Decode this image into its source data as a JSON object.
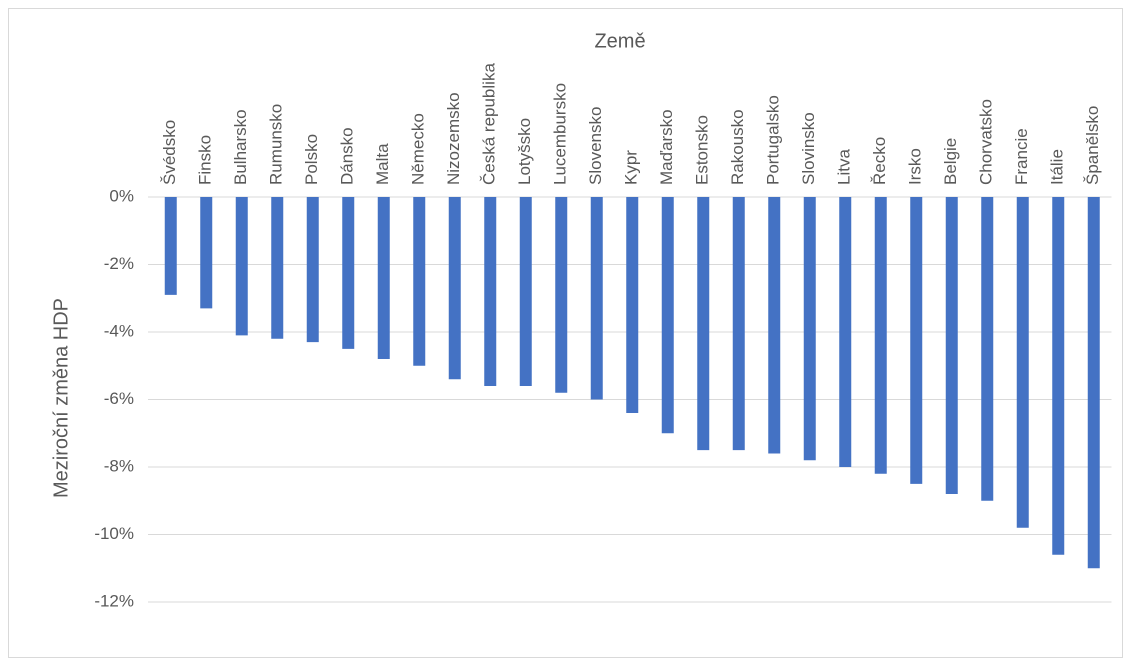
{
  "chart_data": {
    "type": "bar",
    "title": "Země",
    "y_label": "Meziroční změna HDP",
    "categories": [
      "Švédsko",
      "Finsko",
      "Bulharsko",
      "Rumunsko",
      "Polsko",
      "Dánsko",
      "Malta",
      "Německo",
      "Nizozemsko",
      "Česká republika",
      "Lotyšsko",
      "Lucembursko",
      "Slovensko",
      "Kypr",
      "Maďarsko",
      "Estonsko",
      "Rakousko",
      "Portugalsko",
      "Slovinsko",
      "Litva",
      "Řecko",
      "Irsko",
      "Belgie",
      "Chorvatsko",
      "Francie",
      "Itálie",
      "Španělsko"
    ],
    "values": [
      -2.9,
      -3.3,
      -4.1,
      -4.2,
      -4.3,
      -4.5,
      -4.8,
      -5.0,
      -5.4,
      -5.6,
      -5.6,
      -5.8,
      -6.0,
      -6.4,
      -7.0,
      -7.5,
      -7.5,
      -7.6,
      -7.8,
      -8.0,
      -8.2,
      -8.5,
      -8.8,
      -9.0,
      -9.8,
      -10.6,
      -11.0
    ],
    "color": "#4472c4",
    "ylim": [
      -12,
      0
    ],
    "yticks": [
      {
        "value": 0,
        "label": "0%"
      },
      {
        "value": -2,
        "label": "-2%"
      },
      {
        "value": -4,
        "label": "-4%"
      },
      {
        "value": -6,
        "label": "-6%"
      },
      {
        "value": -8,
        "label": "-8%"
      },
      {
        "value": -10,
        "label": "-10%"
      },
      {
        "value": -12,
        "label": "-12%"
      }
    ],
    "grid": true
  }
}
